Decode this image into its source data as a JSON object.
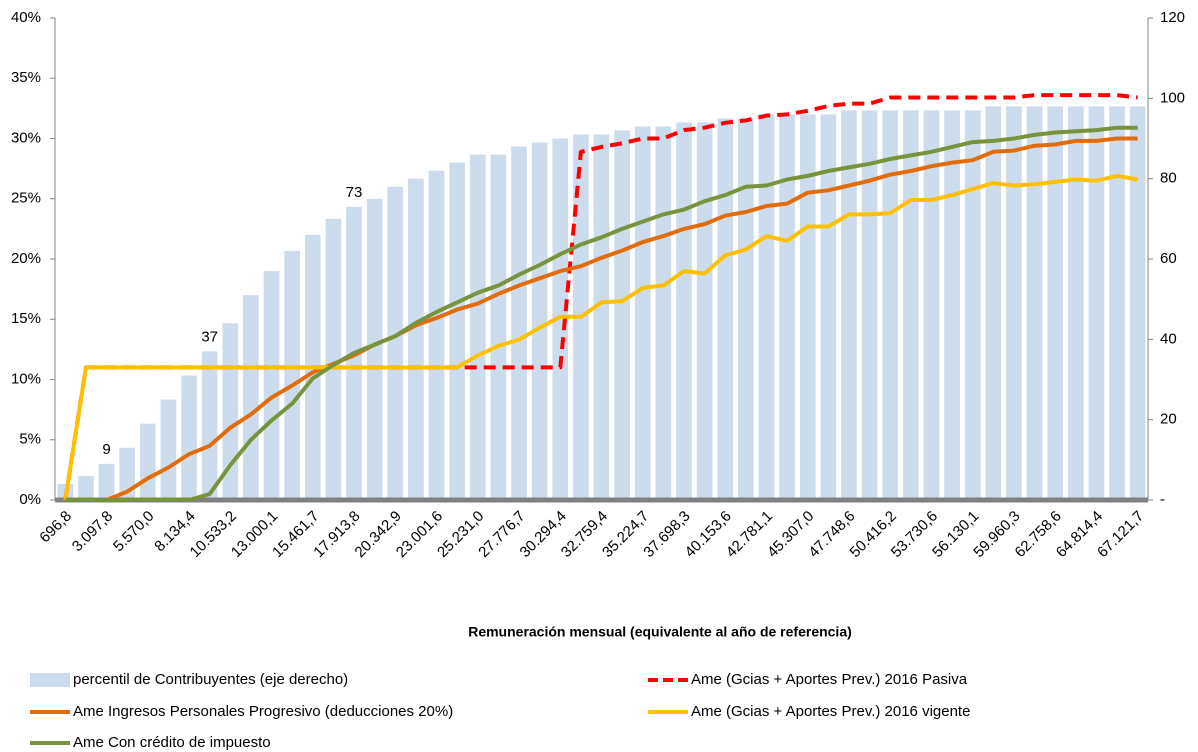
{
  "chart_data": {
    "type": "combo",
    "x_label": "Remuneración mensual (equivalente al año de referencia)",
    "categories": [
      "696,8",
      null,
      "3.097,8",
      null,
      "5.570,0",
      null,
      "8.134,4",
      null,
      "10.533,2",
      null,
      "13.000,1",
      null,
      "15.461,7",
      null,
      "17.913,8",
      null,
      "20.342,9",
      null,
      "23.001,6",
      null,
      "25.231,0",
      null,
      "27.776,7",
      null,
      "30.294,4",
      null,
      "32.759,4",
      null,
      "35.224,7",
      null,
      "37.698,3",
      null,
      "40.153,6",
      null,
      "42.781,1",
      null,
      "45.307,0",
      null,
      "47.748,6",
      null,
      "50.416,2",
      null,
      "53.730,6",
      null,
      "56.130,1",
      null,
      "59.960,3",
      null,
      "62.758,6",
      null,
      "64.814,4",
      null,
      "67.121,7"
    ],
    "ylim": [
      0,
      40
    ],
    "yticks": [
      {
        "value": 0,
        "label": "0%"
      },
      {
        "value": 5,
        "label": "5%"
      },
      {
        "value": 10,
        "label": "10%"
      },
      {
        "value": 15,
        "label": "15%"
      },
      {
        "value": 20,
        "label": "20%"
      },
      {
        "value": 25,
        "label": "25%"
      },
      {
        "value": 30,
        "label": "30%"
      },
      {
        "value": 35,
        "label": "35%"
      },
      {
        "value": 40,
        "label": "40%"
      }
    ],
    "y2lim": [
      0,
      120
    ],
    "y2ticks": [
      {
        "value": 0,
        "label": "-"
      },
      20,
      40,
      60,
      80,
      100,
      120
    ],
    "series": [
      {
        "name": "percentil de Contribuyentes (eje derecho)",
        "type": "bar",
        "axis": "y2",
        "color": "#cddcec",
        "values": [
          4,
          6,
          9,
          13,
          19,
          25,
          31,
          37,
          44,
          51,
          57,
          62,
          66,
          70,
          73,
          75,
          78,
          80,
          82,
          84,
          86,
          86,
          88,
          89,
          90,
          91,
          91,
          92,
          93,
          93,
          94,
          94,
          95,
          95,
          96,
          96,
          96,
          96,
          97,
          97,
          97,
          97,
          97,
          97,
          97,
          98,
          98,
          98,
          98,
          98,
          98,
          98,
          98
        ],
        "value_labels": [
          null,
          null,
          9,
          null,
          null,
          null,
          null,
          37,
          null,
          null,
          null,
          null,
          null,
          null,
          73,
          null,
          null,
          null,
          null,
          null,
          null,
          null,
          null,
          null,
          null,
          null,
          null,
          null,
          null,
          null,
          null,
          null,
          null,
          null,
          null,
          null,
          null,
          null,
          null,
          null,
          null,
          null,
          null,
          null,
          null,
          null,
          null,
          null,
          null,
          null,
          null,
          null,
          null
        ]
      },
      {
        "name": "Ame (Gcias + Aportes Prev.) 2016 Pasiva",
        "type": "line",
        "dashed": true,
        "color": "#ff0000",
        "values": [
          0,
          11,
          11,
          11,
          11,
          11,
          11,
          11,
          11,
          11,
          11,
          11,
          11,
          11,
          11,
          11,
          11,
          11,
          11,
          11,
          11,
          11,
          11,
          11,
          11,
          28.9,
          29.3,
          29.6,
          30,
          30,
          30.7,
          30.9,
          31.3,
          31.5,
          31.9,
          32,
          32.3,
          32.7,
          32.9,
          32.9,
          33.4,
          33.4,
          33.4,
          33.4,
          33.4,
          33.4,
          33.4,
          33.6,
          33.6,
          33.6,
          33.6,
          33.6,
          33.4
        ]
      },
      {
        "name": "Ame Ingresos Personales Progresivo (deducciones 20%)",
        "type": "line",
        "color": "#e36c0a",
        "values": [
          0,
          0,
          0,
          0.7,
          1.8,
          2.7,
          3.8,
          4.5,
          6,
          7.1,
          8.5,
          9.5,
          10.6,
          11.3,
          12,
          12.9,
          13.6,
          14.5,
          15.1,
          15.8,
          16.3,
          17.1,
          17.8,
          18.4,
          19,
          19.4,
          20.1,
          20.7,
          21.4,
          21.9,
          22.5,
          22.9,
          23.6,
          23.9,
          24.4,
          24.6,
          25.5,
          25.7,
          26.1,
          26.5,
          27,
          27.3,
          27.7,
          28,
          28.2,
          28.9,
          29,
          29.4,
          29.5,
          29.8,
          29.8,
          30,
          30
        ]
      },
      {
        "name": "Ame (Gcias + Aportes Prev.) 2016 vigente",
        "type": "line",
        "color": "#ffc000",
        "values": [
          0,
          11,
          11,
          11,
          11,
          11,
          11,
          11,
          11,
          11,
          11,
          11,
          11,
          11,
          11,
          11,
          11,
          11,
          11,
          11,
          12,
          12.8,
          13.3,
          14.3,
          15.2,
          15.2,
          16.4,
          16.5,
          17.6,
          17.8,
          19,
          18.8,
          20.3,
          20.8,
          21.9,
          21.5,
          22.7,
          22.7,
          23.7,
          23.7,
          23.8,
          24.9,
          24.9,
          25.3,
          25.8,
          26.3,
          26.1,
          26.2,
          26.4,
          26.6,
          26.5,
          26.9,
          26.6
        ]
      },
      {
        "name": "Ame Con crédito de impuesto",
        "type": "line",
        "color": "#77933c",
        "values": [
          0,
          0,
          0,
          0,
          0,
          0,
          0,
          0.5,
          2.9,
          5,
          6.6,
          8,
          10.1,
          11.2,
          12.2,
          12.9,
          13.6,
          14.7,
          15.6,
          16.4,
          17.2,
          17.8,
          18.7,
          19.5,
          20.4,
          21.2,
          21.8,
          22.5,
          23.1,
          23.7,
          24.1,
          24.8,
          25.3,
          26,
          26.1,
          26.6,
          26.9,
          27.3,
          27.6,
          27.9,
          28.3,
          28.6,
          28.9,
          29.3,
          29.7,
          29.8,
          30,
          30.3,
          30.5,
          30.6,
          30.7,
          30.9,
          30.9
        ]
      }
    ]
  }
}
